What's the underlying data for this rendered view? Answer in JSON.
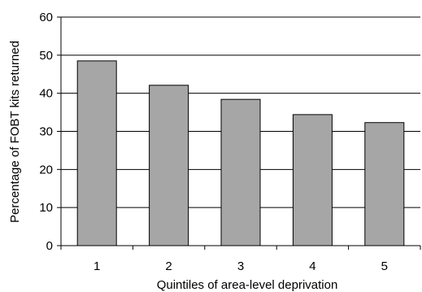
{
  "chart_data": {
    "type": "bar",
    "categories": [
      "1",
      "2",
      "3",
      "4",
      "5"
    ],
    "values": [
      48.5,
      42.1,
      38.4,
      34.4,
      32.3
    ],
    "title": "",
    "xlabel": "Quintiles of area-level deprivation",
    "ylabel": "Percentage of FOBT kits returned",
    "ylim": [
      0,
      60
    ],
    "yticks": [
      0,
      10,
      20,
      30,
      40,
      50,
      60
    ],
    "grid": true,
    "legend": "none",
    "colors": {
      "bar_fill": "#a6a6a6",
      "bar_stroke": "#000000",
      "grid": "#000000",
      "axis": "#000000"
    }
  }
}
